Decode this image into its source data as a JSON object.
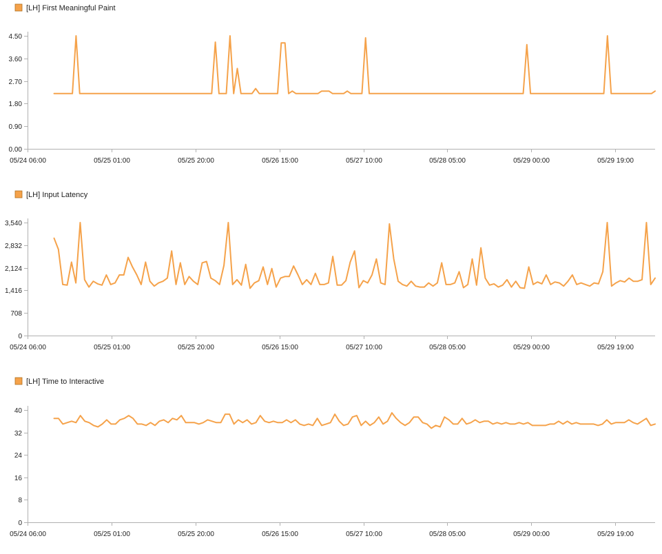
{
  "chart_data": [
    {
      "type": "line",
      "legend": "[LH] First Meaningful Paint",
      "color": "#f5a24a",
      "x_ticks": [
        "05/24 06:00",
        "05/25 01:00",
        "05/25 20:00",
        "05/26 15:00",
        "05/27 10:00",
        "05/28 05:00",
        "05/29 00:00",
        "05/29 19:00"
      ],
      "y_ticks": [
        "0.00",
        "0.90",
        "1.80",
        "2.70",
        "3.60",
        "4.50"
      ],
      "xlim": [
        "05/24 06:00",
        "05/30 04:00"
      ],
      "ylim": [
        0,
        4.5
      ],
      "x_start": "05/24 12:00",
      "x_end": "05/30 04:00",
      "values": [
        2.2,
        2.2,
        2.2,
        2.2,
        2.2,
        2.2,
        4.5,
        2.2,
        2.2,
        2.2,
        2.2,
        2.2,
        2.2,
        2.2,
        2.2,
        2.2,
        2.2,
        2.2,
        2.2,
        2.2,
        2.2,
        2.2,
        2.2,
        2.2,
        2.2,
        2.2,
        2.2,
        2.2,
        2.2,
        2.2,
        2.2,
        2.2,
        2.2,
        2.2,
        2.2,
        2.2,
        2.2,
        2.2,
        2.2,
        2.2,
        2.2,
        2.2,
        2.2,
        2.2,
        4.25,
        2.2,
        2.2,
        2.2,
        4.5,
        2.2,
        3.2,
        2.2,
        2.2,
        2.2,
        2.2,
        2.4,
        2.2,
        2.2,
        2.2,
        2.2,
        2.2,
        2.2,
        4.22,
        4.22,
        2.2,
        2.3,
        2.2,
        2.2,
        2.2,
        2.2,
        2.2,
        2.2,
        2.2,
        2.3,
        2.3,
        2.3,
        2.2,
        2.2,
        2.2,
        2.2,
        2.3,
        2.2,
        2.2,
        2.2,
        2.2,
        4.42,
        2.2,
        2.2,
        2.2,
        2.2,
        2.2,
        2.2,
        2.2,
        2.2,
        2.2,
        2.2,
        2.2,
        2.2,
        2.2,
        2.2,
        2.2,
        2.2,
        2.2,
        2.2,
        2.2,
        2.2,
        2.2,
        2.2,
        2.2,
        2.2,
        2.2,
        2.2,
        2.2,
        2.2,
        2.2,
        2.2,
        2.2,
        2.2,
        2.2,
        2.2,
        2.2,
        2.2,
        2.2,
        2.2,
        2.2,
        2.2,
        2.2,
        2.2,
        2.2,
        4.15,
        2.2,
        2.2,
        2.2,
        2.2,
        2.2,
        2.2,
        2.2,
        2.2,
        2.2,
        2.2,
        2.2,
        2.2,
        2.2,
        2.2,
        2.2,
        2.2,
        2.2,
        2.2,
        2.2,
        2.2,
        2.2,
        4.5,
        2.2,
        2.2,
        2.2,
        2.2,
        2.2,
        2.2,
        2.2,
        2.2,
        2.2,
        2.2,
        2.2,
        2.2,
        2.3
      ]
    },
    {
      "type": "line",
      "legend": "[LH] Input Latency",
      "color": "#f5a24a",
      "x_ticks": [
        "05/24 06:00",
        "05/25 01:00",
        "05/25 20:00",
        "05/26 15:00",
        "05/27 10:00",
        "05/28 05:00",
        "05/29 00:00",
        "05/29 19:00"
      ],
      "y_ticks": [
        "0",
        "708",
        "1,416",
        "2,124",
        "2,832",
        "3,540"
      ],
      "xlim": [
        "05/24 06:00",
        "05/30 04:00"
      ],
      "ylim": [
        0,
        3540
      ],
      "x_start": "05/24 12:00",
      "x_end": "05/30 04:00",
      "values": [
        3050,
        2700,
        1600,
        1580,
        2300,
        1650,
        3540,
        1750,
        1520,
        1700,
        1620,
        1580,
        1900,
        1600,
        1650,
        1900,
        1900,
        2450,
        2150,
        1900,
        1600,
        2300,
        1700,
        1550,
        1650,
        1700,
        1800,
        2650,
        1600,
        2280,
        1600,
        1850,
        1700,
        1600,
        2280,
        2320,
        1800,
        1720,
        1600,
        2200,
        3540,
        1600,
        1750,
        1580,
        2230,
        1480,
        1650,
        1720,
        2150,
        1600,
        2100,
        1520,
        1800,
        1850,
        1850,
        2180,
        1900,
        1600,
        1750,
        1600,
        1950,
        1600,
        1600,
        1650,
        2480,
        1580,
        1580,
        1720,
        2300,
        2650,
        1500,
        1720,
        1650,
        1900,
        2400,
        1650,
        1600,
        3500,
        2400,
        1700,
        1600,
        1550,
        1700,
        1550,
        1520,
        1520,
        1650,
        1550,
        1650,
        2280,
        1600,
        1600,
        1650,
        2000,
        1500,
        1600,
        2400,
        1580,
        2750,
        1800,
        1580,
        1620,
        1520,
        1580,
        1750,
        1520,
        1700,
        1500,
        1480,
        2150,
        1600,
        1680,
        1620,
        1900,
        1600,
        1680,
        1650,
        1550,
        1700,
        1900,
        1600,
        1650,
        1600,
        1550,
        1650,
        1620,
        2000,
        3540,
        1550,
        1650,
        1720,
        1680,
        1800,
        1700,
        1700,
        1750,
        3540,
        1600,
        1800
      ]
    },
    {
      "type": "line",
      "legend": "[LH] Time to Interactive",
      "color": "#f5a24a",
      "x_ticks": [
        "05/24 06:00",
        "05/25 01:00",
        "05/25 20:00",
        "05/26 15:00",
        "05/27 10:00",
        "05/28 05:00",
        "05/29 00:00",
        "05/29 19:00"
      ],
      "y_ticks": [
        "0",
        "8",
        "16",
        "24",
        "32",
        "40"
      ],
      "xlim": [
        "05/24 06:00",
        "05/30 04:00"
      ],
      "ylim": [
        0,
        40
      ],
      "x_start": "05/24 12:00",
      "x_end": "05/30 04:00",
      "values": [
        37,
        37,
        35,
        35.5,
        36,
        35.5,
        38,
        36,
        35.5,
        34.5,
        34,
        35,
        36.5,
        35,
        35,
        36.5,
        37,
        38,
        37,
        35,
        35,
        34.5,
        35.5,
        34.5,
        36,
        36.5,
        35.5,
        37,
        36.5,
        38,
        35.5,
        35.5,
        35.5,
        35,
        35.5,
        36.5,
        36,
        35.5,
        35.5,
        38.5,
        38.5,
        35,
        36.5,
        35.5,
        36.5,
        35,
        35.5,
        38,
        36,
        35.5,
        36,
        35.5,
        35.5,
        36.5,
        35.5,
        36.5,
        35,
        34.5,
        35,
        34.5,
        37,
        34.5,
        35,
        35.5,
        38.5,
        36,
        34.5,
        35,
        37.5,
        38,
        34.5,
        36,
        34.5,
        35.5,
        37.5,
        35,
        36,
        39,
        37,
        35.5,
        34.5,
        35.5,
        37.5,
        37.5,
        35.5,
        35,
        33.5,
        34.5,
        34,
        37.5,
        36.5,
        35,
        35,
        37,
        35,
        35.5,
        36.5,
        35.5,
        36,
        36,
        35,
        35.5,
        35,
        35.5,
        35,
        35,
        35.5,
        35,
        35.5,
        34.5,
        34.5,
        34.5,
        34.5,
        35,
        35,
        36,
        35,
        36,
        35,
        35.5,
        35,
        35,
        35,
        35,
        34.5,
        35,
        36.5,
        35,
        35.5,
        35.5,
        35.5,
        36.5,
        35.5,
        35,
        36,
        37,
        34.5,
        35
      ]
    }
  ]
}
